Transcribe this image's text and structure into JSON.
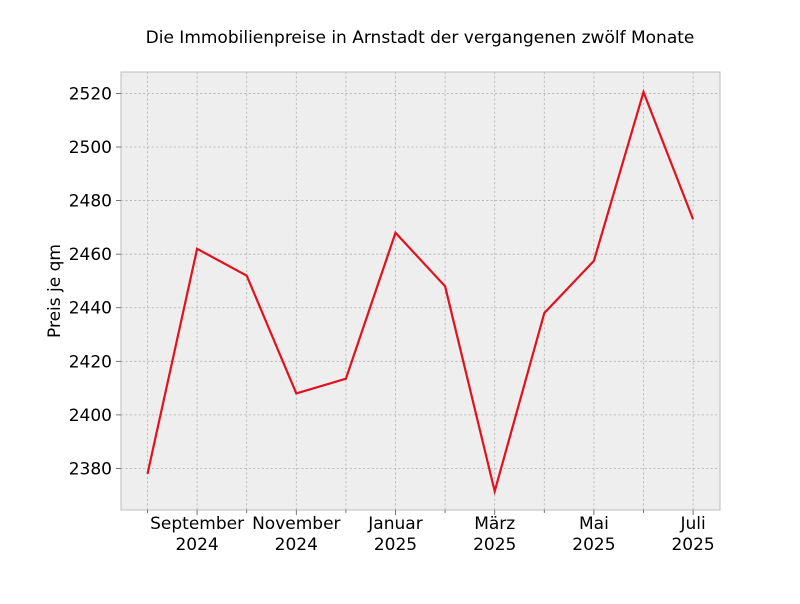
{
  "chart_data": {
    "type": "line",
    "title": "Die Immobilienpreise in Arnstadt der vergangenen zwölf Monate",
    "xlabel": "",
    "ylabel": "Preis je qm",
    "x": [
      "2024-08",
      "2024-09",
      "2024-10",
      "2024-11",
      "2024-12",
      "2025-01",
      "2025-02",
      "2025-03",
      "2025-04",
      "2025-05",
      "2025-06",
      "2025-07"
    ],
    "series": [
      {
        "values": [
          2378,
          2462,
          2452,
          2408,
          2413.5,
          2468,
          2448,
          2371.5,
          2438,
          2457.5,
          2520.5,
          2473
        ]
      }
    ],
    "xtick_labels": [
      {
        "x": "2024-09",
        "lines": [
          "September",
          "2024"
        ]
      },
      {
        "x": "2024-11",
        "lines": [
          "November",
          "2024"
        ]
      },
      {
        "x": "2025-01",
        "lines": [
          "Januar",
          "2025"
        ]
      },
      {
        "x": "2025-03",
        "lines": [
          "März",
          "2025"
        ]
      },
      {
        "x": "2025-05",
        "lines": [
          "Mai",
          "2025"
        ]
      },
      {
        "x": "2025-07",
        "lines": [
          "Juli",
          "2025"
        ]
      }
    ],
    "yticks": [
      2380,
      2400,
      2420,
      2440,
      2460,
      2480,
      2500,
      2520
    ],
    "ylim": [
      2364.5,
      2528
    ],
    "grid": true,
    "legend": "none",
    "colors": {
      "line": "#e2111e",
      "plot_background": "#eeeeee",
      "grid": "#b2b2b2",
      "frame": "#bcbcbc"
    }
  }
}
